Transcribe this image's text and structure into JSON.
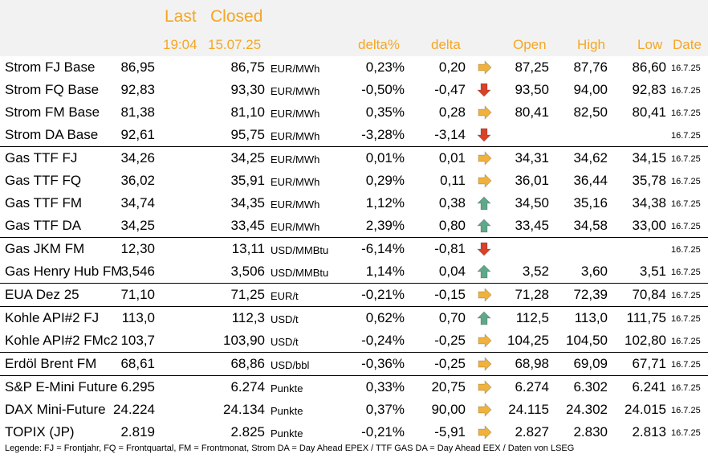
{
  "header": {
    "last": "Last",
    "closed": "Closed",
    "last_time": "19:04",
    "closed_date": "15.07.25",
    "delta_pct": "delta%",
    "delta": "delta",
    "open": "Open",
    "high": "High",
    "low": "Low",
    "date": "Date"
  },
  "colors": {
    "header_text": "#f5a623",
    "arrow_side": "#f0b23c",
    "arrow_down": "#d9412a",
    "arrow_up": "#5fa88a"
  },
  "rows": [
    {
      "name": "Strom FJ Base",
      "last": "86,95",
      "closed": "86,75",
      "unit": "EUR/MWh",
      "dp": "0,23%",
      "d": "0,20",
      "trend": "side",
      "open": "87,25",
      "high": "87,76",
      "low": "86,60",
      "date": "16.7.25"
    },
    {
      "name": "Strom FQ Base",
      "last": "92,83",
      "closed": "93,30",
      "unit": "EUR/MWh",
      "dp": "-0,50%",
      "d": "-0,47",
      "trend": "down",
      "open": "93,50",
      "high": "94,00",
      "low": "92,83",
      "date": "16.7.25"
    },
    {
      "name": "Strom FM Base",
      "last": "81,38",
      "closed": "81,10",
      "unit": "EUR/MWh",
      "dp": "0,35%",
      "d": "0,28",
      "trend": "side",
      "open": "80,41",
      "high": "82,50",
      "low": "80,41",
      "date": "16.7.25"
    },
    {
      "name": "Strom DA Base",
      "last": "92,61",
      "closed": "95,75",
      "unit": "EUR/MWh",
      "dp": "-3,28%",
      "d": "-3,14",
      "trend": "down",
      "open": "",
      "high": "",
      "low": "",
      "date": "16.7.25"
    },
    {
      "name": "Gas TTF FJ",
      "last": "34,26",
      "closed": "34,25",
      "unit": "EUR/MWh",
      "dp": "0,01%",
      "d": "0,01",
      "trend": "side",
      "open": "34,31",
      "high": "34,62",
      "low": "34,15",
      "date": "16.7.25"
    },
    {
      "name": "Gas TTF FQ",
      "last": "36,02",
      "closed": "35,91",
      "unit": "EUR/MWh",
      "dp": "0,29%",
      "d": "0,11",
      "trend": "side",
      "open": "36,01",
      "high": "36,44",
      "low": "35,78",
      "date": "16.7.25"
    },
    {
      "name": "Gas TTF FM",
      "last": "34,74",
      "closed": "34,35",
      "unit": "EUR/MWh",
      "dp": "1,12%",
      "d": "0,38",
      "trend": "up",
      "open": "34,50",
      "high": "35,16",
      "low": "34,38",
      "date": "16.7.25"
    },
    {
      "name": "Gas TTF DA",
      "last": "34,25",
      "closed": "33,45",
      "unit": "EUR/MWh",
      "dp": "2,39%",
      "d": "0,80",
      "trend": "up",
      "open": "33,45",
      "high": "34,58",
      "low": "33,00",
      "date": "16.7.25"
    },
    {
      "name": "Gas JKM FM",
      "last": "12,30",
      "closed": "13,11",
      "unit": "USD/MMBtu",
      "dp": "-6,14%",
      "d": "-0,81",
      "trend": "down",
      "open": "",
      "high": "",
      "low": "",
      "date": "16.7.25"
    },
    {
      "name": "Gas Henry Hub FM",
      "last": "3,546",
      "closed": "3,506",
      "unit": "USD/MMBtu",
      "dp": "1,14%",
      "d": "0,04",
      "trend": "up",
      "open": "3,52",
      "high": "3,60",
      "low": "3,51",
      "date": "16.7.25"
    },
    {
      "name": "EUA Dez 25",
      "last": "71,10",
      "closed": "71,25",
      "unit": "EUR/t",
      "dp": "-0,21%",
      "d": "-0,15",
      "trend": "side",
      "open": "71,28",
      "high": "72,39",
      "low": "70,84",
      "date": "16.7.25"
    },
    {
      "name": "Kohle API#2 FJ",
      "last": "113,0",
      "closed": "112,3",
      "unit": "USD/t",
      "dp": "0,62%",
      "d": "0,70",
      "trend": "up",
      "open": "112,5",
      "high": "113,0",
      "low": "111,75",
      "date": "16.7.25"
    },
    {
      "name": "Kohle API#2 FMc2",
      "last": "103,7",
      "closed": "103,90",
      "unit": "USD/t",
      "dp": "-0,24%",
      "d": "-0,25",
      "trend": "side",
      "open": "104,25",
      "high": "104,50",
      "low": "102,80",
      "date": "16.7.25"
    },
    {
      "name": "Erdöl Brent FM",
      "last": "68,61",
      "closed": "68,86",
      "unit": "USD/bbl",
      "dp": "-0,36%",
      "d": "-0,25",
      "trend": "side",
      "open": "68,98",
      "high": "69,09",
      "low": "67,71",
      "date": "16.7.25"
    },
    {
      "name": "S&P E-Mini Future",
      "last": "6.295",
      "closed": "6.274",
      "unit": "Punkte",
      "dp": "0,33%",
      "d": "20,75",
      "trend": "side",
      "open": "6.274",
      "high": "6.302",
      "low": "6.241",
      "date": "16.7.25"
    },
    {
      "name": "DAX Mini-Future",
      "last": "24.224",
      "closed": "24.134",
      "unit": "Punkte",
      "dp": "0,37%",
      "d": "90,00",
      "trend": "side",
      "open": "24.115",
      "high": "24.302",
      "low": "24.015",
      "date": "16.7.25"
    },
    {
      "name": "TOPIX (JP)",
      "last": "2.819",
      "closed": "2.825",
      "unit": "Punkte",
      "dp": "-0,21%",
      "d": "-5,91",
      "trend": "side",
      "open": "2.827",
      "high": "2.830",
      "low": "2.813",
      "date": "16.7.25"
    }
  ],
  "legend": "Legende: FJ = Frontjahr, FQ = Frontquartal, FM = Frontmonat, Strom DA = Day Ahead EPEX / TTF GAS DA = Day Ahead EEX / Daten von LSEG"
}
